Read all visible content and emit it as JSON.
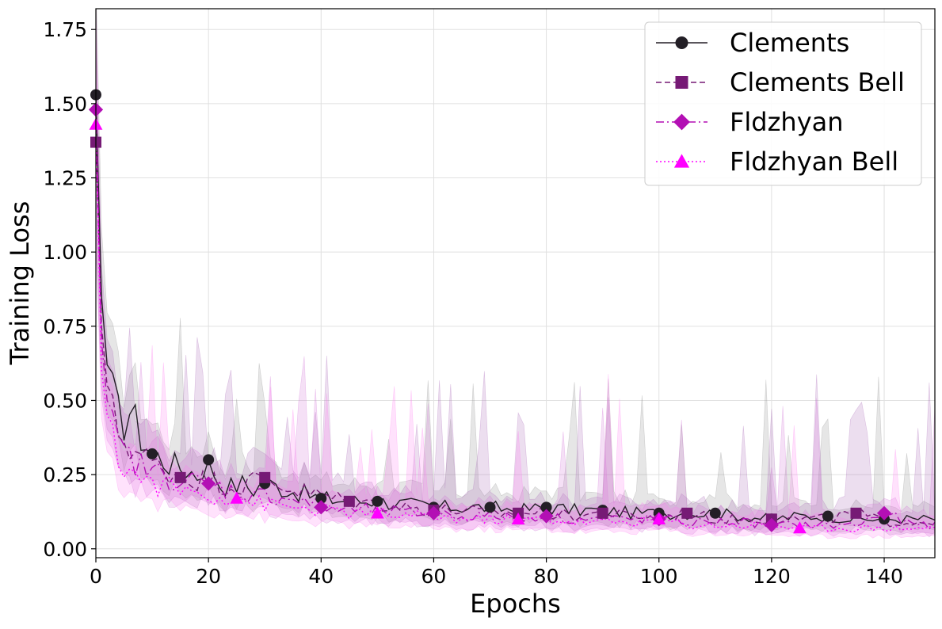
{
  "chart_data": {
    "type": "line",
    "title": "",
    "xlabel": "Epochs",
    "ylabel": "Training Loss",
    "xlim": [
      0,
      149
    ],
    "ylim": [
      -0.03,
      1.82
    ],
    "x_ticks": [
      0,
      20,
      40,
      60,
      80,
      100,
      120,
      140
    ],
    "x_tick_labels": [
      "0",
      "20",
      "40",
      "60",
      "80",
      "100",
      "120",
      "140"
    ],
    "y_ticks": [
      0.0,
      0.25,
      0.5,
      0.75,
      1.0,
      1.25,
      1.5,
      1.75
    ],
    "y_tick_labels": [
      "0.00",
      "0.25",
      "0.50",
      "0.75",
      "1.00",
      "1.25",
      "1.50",
      "1.75"
    ],
    "grid": true,
    "legend_position": "top-right",
    "series": [
      {
        "name": "Clements",
        "color": "#231f26",
        "marker": "circle",
        "linestyle": "solid",
        "band_color": "#8c8c8c",
        "markers": [
          [
            0,
            1.53
          ],
          [
            10,
            0.32
          ],
          [
            20,
            0.3
          ],
          [
            30,
            0.22
          ],
          [
            40,
            0.17
          ],
          [
            50,
            0.16
          ],
          [
            60,
            0.14
          ],
          [
            70,
            0.14
          ],
          [
            80,
            0.14
          ],
          [
            90,
            0.13
          ],
          [
            100,
            0.12
          ],
          [
            110,
            0.12
          ],
          [
            120,
            0.1
          ],
          [
            130,
            0.11
          ],
          [
            140,
            0.1
          ]
        ],
        "curve": [
          [
            0,
            1.53
          ],
          [
            1,
            0.85
          ],
          [
            2,
            0.62
          ],
          [
            3,
            0.52
          ],
          [
            4,
            0.45
          ],
          [
            5,
            0.43
          ],
          [
            6,
            0.47
          ],
          [
            8,
            0.38
          ],
          [
            10,
            0.32
          ],
          [
            12,
            0.3
          ],
          [
            14,
            0.28
          ],
          [
            16,
            0.27
          ],
          [
            18,
            0.25
          ],
          [
            20,
            0.3
          ],
          [
            22,
            0.22
          ],
          [
            24,
            0.21
          ],
          [
            26,
            0.22
          ],
          [
            28,
            0.2
          ],
          [
            30,
            0.22
          ],
          [
            32,
            0.21
          ],
          [
            34,
            0.2
          ],
          [
            36,
            0.19
          ],
          [
            38,
            0.18
          ],
          [
            40,
            0.17
          ],
          [
            45,
            0.16
          ],
          [
            50,
            0.16
          ],
          [
            55,
            0.15
          ],
          [
            60,
            0.14
          ],
          [
            65,
            0.14
          ],
          [
            70,
            0.14
          ],
          [
            75,
            0.13
          ],
          [
            80,
            0.14
          ],
          [
            85,
            0.13
          ],
          [
            90,
            0.13
          ],
          [
            95,
            0.12
          ],
          [
            100,
            0.12
          ],
          [
            105,
            0.12
          ],
          [
            110,
            0.12
          ],
          [
            115,
            0.11
          ],
          [
            120,
            0.1
          ],
          [
            125,
            0.11
          ],
          [
            130,
            0.11
          ],
          [
            135,
            0.1
          ],
          [
            140,
            0.1
          ],
          [
            145,
            0.1
          ],
          [
            149,
            0.1
          ]
        ]
      },
      {
        "name": "Clements Bell",
        "color": "#761a75",
        "marker": "square",
        "linestyle": "dashed",
        "band_color": "#a868b8",
        "markers": [
          [
            0,
            1.37
          ],
          [
            15,
            0.24
          ],
          [
            30,
            0.24
          ],
          [
            45,
            0.16
          ],
          [
            60,
            0.13
          ],
          [
            75,
            0.12
          ],
          [
            90,
            0.12
          ],
          [
            105,
            0.12
          ],
          [
            120,
            0.1
          ],
          [
            135,
            0.12
          ]
        ],
        "curve": [
          [
            0,
            1.37
          ],
          [
            1,
            0.75
          ],
          [
            2,
            0.55
          ],
          [
            3,
            0.45
          ],
          [
            4,
            0.4
          ],
          [
            5,
            0.37
          ],
          [
            7,
            0.33
          ],
          [
            10,
            0.29
          ],
          [
            12,
            0.27
          ],
          [
            15,
            0.24
          ],
          [
            20,
            0.23
          ],
          [
            25,
            0.21
          ],
          [
            30,
            0.24
          ],
          [
            35,
            0.2
          ],
          [
            40,
            0.18
          ],
          [
            45,
            0.16
          ],
          [
            50,
            0.15
          ],
          [
            55,
            0.14
          ],
          [
            60,
            0.13
          ],
          [
            65,
            0.13
          ],
          [
            70,
            0.12
          ],
          [
            75,
            0.12
          ],
          [
            80,
            0.12
          ],
          [
            85,
            0.11
          ],
          [
            90,
            0.12
          ],
          [
            95,
            0.11
          ],
          [
            100,
            0.11
          ],
          [
            105,
            0.12
          ],
          [
            110,
            0.1
          ],
          [
            115,
            0.1
          ],
          [
            120,
            0.1
          ],
          [
            125,
            0.1
          ],
          [
            130,
            0.1
          ],
          [
            135,
            0.12
          ],
          [
            140,
            0.09
          ],
          [
            145,
            0.09
          ],
          [
            149,
            0.09
          ]
        ]
      },
      {
        "name": "Fldzhyan",
        "color": "#b30fb4",
        "marker": "diamond",
        "linestyle": "dashdot",
        "band_color": "#d070d8",
        "markers": [
          [
            0,
            1.48
          ],
          [
            20,
            0.22
          ],
          [
            40,
            0.14
          ],
          [
            60,
            0.12
          ],
          [
            80,
            0.11
          ],
          [
            100,
            0.1
          ],
          [
            120,
            0.08
          ],
          [
            140,
            0.12
          ]
        ],
        "curve": [
          [
            0,
            1.48
          ],
          [
            1,
            0.7
          ],
          [
            2,
            0.5
          ],
          [
            3,
            0.4
          ],
          [
            4,
            0.35
          ],
          [
            5,
            0.32
          ],
          [
            7,
            0.29
          ],
          [
            10,
            0.26
          ],
          [
            15,
            0.23
          ],
          [
            20,
            0.22
          ],
          [
            25,
            0.19
          ],
          [
            30,
            0.18
          ],
          [
            35,
            0.17
          ],
          [
            40,
            0.14
          ],
          [
            45,
            0.13
          ],
          [
            50,
            0.13
          ],
          [
            55,
            0.12
          ],
          [
            60,
            0.12
          ],
          [
            65,
            0.11
          ],
          [
            70,
            0.11
          ],
          [
            75,
            0.11
          ],
          [
            80,
            0.11
          ],
          [
            85,
            0.1
          ],
          [
            90,
            0.1
          ],
          [
            95,
            0.1
          ],
          [
            100,
            0.1
          ],
          [
            105,
            0.09
          ],
          [
            110,
            0.09
          ],
          [
            115,
            0.09
          ],
          [
            120,
            0.08
          ],
          [
            125,
            0.08
          ],
          [
            130,
            0.08
          ],
          [
            135,
            0.08
          ],
          [
            140,
            0.12
          ],
          [
            145,
            0.08
          ],
          [
            149,
            0.08
          ]
        ]
      },
      {
        "name": "Fldzhyan Bell",
        "color": "#ff00ff",
        "marker": "triangle",
        "linestyle": "dotted",
        "band_color": "#ff7cf0",
        "markers": [
          [
            0,
            1.43
          ],
          [
            25,
            0.17
          ],
          [
            50,
            0.12
          ],
          [
            75,
            0.1
          ],
          [
            100,
            0.1
          ],
          [
            125,
            0.07
          ]
        ],
        "curve": [
          [
            0,
            1.43
          ],
          [
            1,
            0.6
          ],
          [
            2,
            0.45
          ],
          [
            3,
            0.36
          ],
          [
            4,
            0.31
          ],
          [
            5,
            0.28
          ],
          [
            7,
            0.25
          ],
          [
            10,
            0.22
          ],
          [
            15,
            0.2
          ],
          [
            20,
            0.18
          ],
          [
            25,
            0.17
          ],
          [
            30,
            0.15
          ],
          [
            35,
            0.14
          ],
          [
            40,
            0.13
          ],
          [
            45,
            0.12
          ],
          [
            50,
            0.12
          ],
          [
            55,
            0.11
          ],
          [
            60,
            0.11
          ],
          [
            65,
            0.1
          ],
          [
            70,
            0.1
          ],
          [
            75,
            0.1
          ],
          [
            80,
            0.1
          ],
          [
            85,
            0.09
          ],
          [
            90,
            0.09
          ],
          [
            95,
            0.09
          ],
          [
            100,
            0.1
          ],
          [
            105,
            0.08
          ],
          [
            110,
            0.08
          ],
          [
            115,
            0.08
          ],
          [
            120,
            0.08
          ],
          [
            125,
            0.07
          ],
          [
            130,
            0.07
          ],
          [
            135,
            0.07
          ],
          [
            140,
            0.07
          ],
          [
            145,
            0.07
          ],
          [
            149,
            0.07
          ]
        ]
      }
    ]
  }
}
